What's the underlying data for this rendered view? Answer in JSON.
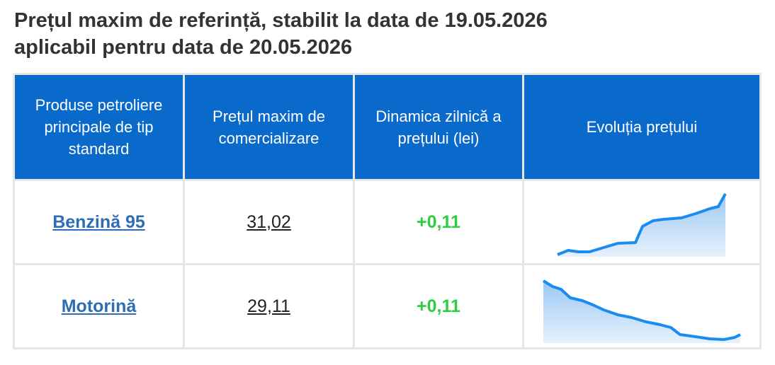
{
  "header": {
    "title_line1": "Prețul maxim de referință, stabilit la data de 19.05.2026",
    "title_line2": "aplicabil pentru data de 20.05.2026"
  },
  "table": {
    "columns": [
      "Produse petroliere principale de tip standard",
      "Prețul maxim de comercializare",
      "Dinamica zilnică a prețului (lei)",
      "Evoluția prețului"
    ],
    "rows": [
      [
        "Benzină 95",
        "31,02",
        "+0,11"
      ],
      [
        "Motorină",
        "29,11",
        "+0,11"
      ]
    ]
  }
}
